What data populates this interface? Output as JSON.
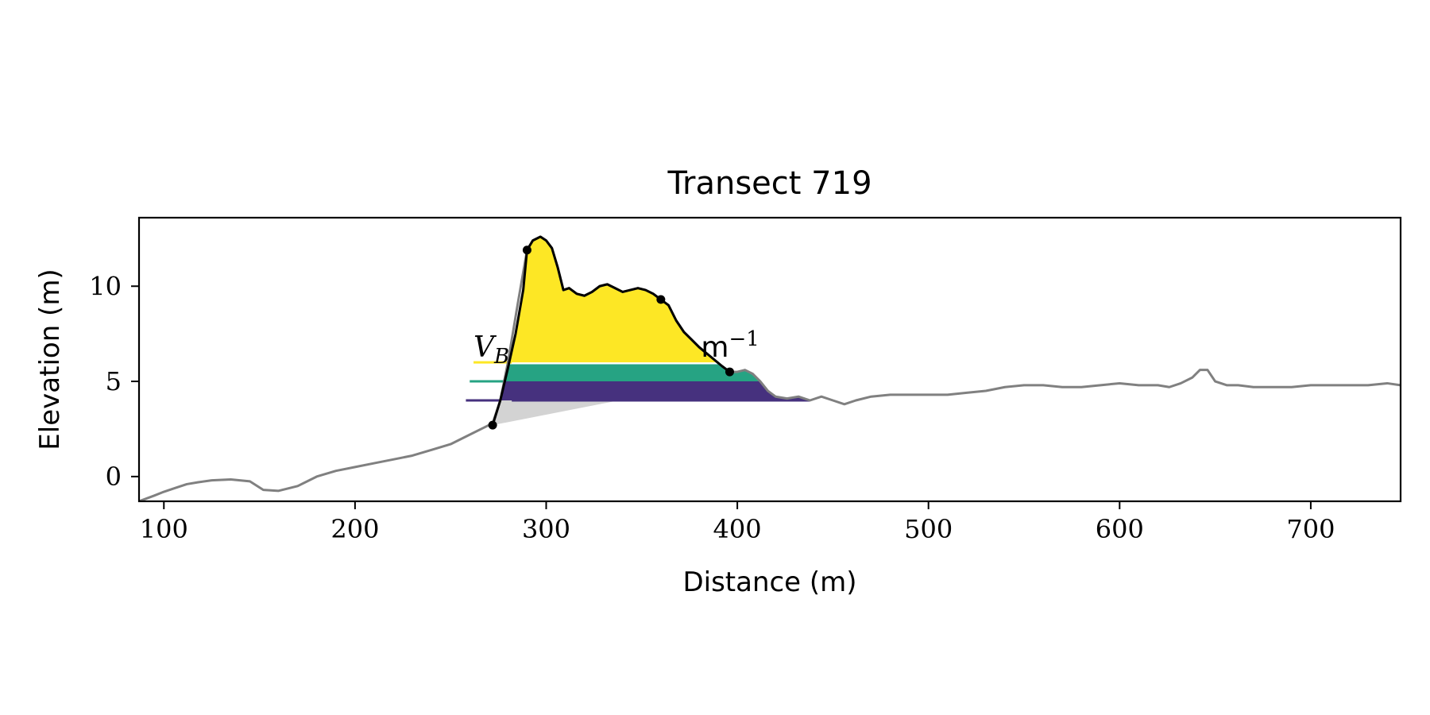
{
  "chart_data": {
    "type": "area",
    "title": "Transect 719",
    "xlabel": "Distance (m)",
    "ylabel": "Elevation (m)",
    "xlim": [
      87,
      747
    ],
    "ylim": [
      -1.3,
      13.6
    ],
    "xticks": [
      100,
      200,
      300,
      400,
      500,
      600,
      700
    ],
    "yticks": [
      0,
      5,
      10
    ],
    "grid": false,
    "profile_color": "#808080",
    "profile": {
      "x": [
        87,
        95,
        100,
        106,
        112,
        118,
        125,
        135,
        145,
        152,
        160,
        170,
        180,
        190,
        200,
        210,
        220,
        230,
        240,
        250,
        260,
        268,
        272,
        276,
        280,
        285,
        290,
        293,
        297,
        300,
        303,
        306,
        309,
        312,
        316,
        320,
        324,
        328,
        332,
        336,
        340,
        344,
        348,
        352,
        356,
        360,
        364,
        368,
        372,
        376,
        380,
        386,
        392,
        396,
        400,
        404,
        408,
        412,
        416,
        420,
        426,
        432,
        438,
        444,
        450,
        456,
        462,
        470,
        480,
        490,
        500,
        510,
        520,
        530,
        540,
        550,
        560,
        570,
        580,
        590,
        600,
        610,
        620,
        626,
        632,
        638,
        642,
        646,
        650,
        656,
        662,
        670,
        680,
        690,
        700,
        710,
        720,
        730,
        740,
        747
      ],
      "y": [
        -1.3,
        -1.0,
        -0.8,
        -0.6,
        -0.4,
        -0.3,
        -0.2,
        -0.15,
        -0.25,
        -0.7,
        -0.75,
        -0.5,
        0.0,
        0.3,
        0.5,
        0.7,
        0.9,
        1.1,
        1.4,
        1.7,
        2.2,
        2.6,
        2.8,
        4.0,
        6.0,
        9.0,
        11.9,
        12.4,
        12.6,
        12.4,
        12.0,
        11.0,
        9.8,
        9.9,
        9.6,
        9.5,
        9.7,
        10.0,
        10.1,
        9.9,
        9.7,
        9.8,
        9.9,
        9.8,
        9.6,
        9.3,
        9.0,
        8.2,
        7.6,
        7.2,
        6.8,
        6.3,
        5.8,
        5.5,
        5.5,
        5.6,
        5.4,
        5.0,
        4.5,
        4.2,
        4.1,
        4.2,
        4.0,
        4.2,
        4.0,
        3.8,
        4.0,
        4.2,
        4.3,
        4.3,
        4.3,
        4.3,
        4.4,
        4.5,
        4.7,
        4.8,
        4.8,
        4.7,
        4.7,
        4.8,
        4.9,
        4.8,
        4.8,
        4.7,
        4.9,
        5.2,
        5.6,
        5.6,
        5.0,
        4.8,
        4.8,
        4.7,
        4.7,
        4.7,
        4.8,
        4.8,
        4.8,
        4.8,
        4.9,
        4.8
      ]
    },
    "highlight_curve": {
      "color": "#000000",
      "x": [
        272,
        276,
        280,
        284,
        288,
        290,
        293,
        297,
        300,
        303,
        306,
        309,
        312,
        316,
        320,
        324,
        328,
        332,
        336,
        340,
        344,
        348,
        352,
        356,
        360,
        364,
        368,
        372,
        376,
        380,
        386,
        392,
        396
      ],
      "y": [
        2.7,
        4.0,
        5.7,
        7.5,
        9.8,
        11.9,
        12.4,
        12.6,
        12.4,
        12.0,
        11.0,
        9.8,
        9.9,
        9.6,
        9.5,
        9.7,
        10.0,
        10.1,
        9.9,
        9.7,
        9.8,
        9.9,
        9.8,
        9.6,
        9.3,
        9.0,
        8.2,
        7.6,
        7.2,
        6.8,
        6.3,
        5.8,
        5.5
      ]
    },
    "marker_points": {
      "x": [
        272,
        290,
        360,
        396
      ],
      "y": [
        2.7,
        11.9,
        9.3,
        5.5
      ]
    },
    "bands": [
      {
        "level_low": 4.0,
        "level_high": 5.0,
        "color": "#46317e",
        "legend_x": [
          258,
          282
        ]
      },
      {
        "level_low": 5.0,
        "level_high": 5.9,
        "color": "#26a383",
        "legend_x": [
          260,
          282
        ]
      },
      {
        "level_high": 6.0,
        "color": "#fde725",
        "legend_x": [
          262,
          282
        ]
      }
    ],
    "grey_fill_color": "#d3d3d3",
    "annotations": [
      {
        "text_main": "V",
        "text_sub": "B",
        "x": 262,
        "y": 6.3
      },
      {
        "text_main": "m",
        "text_sup": "−1",
        "x": 381,
        "y": 6.3
      }
    ]
  }
}
